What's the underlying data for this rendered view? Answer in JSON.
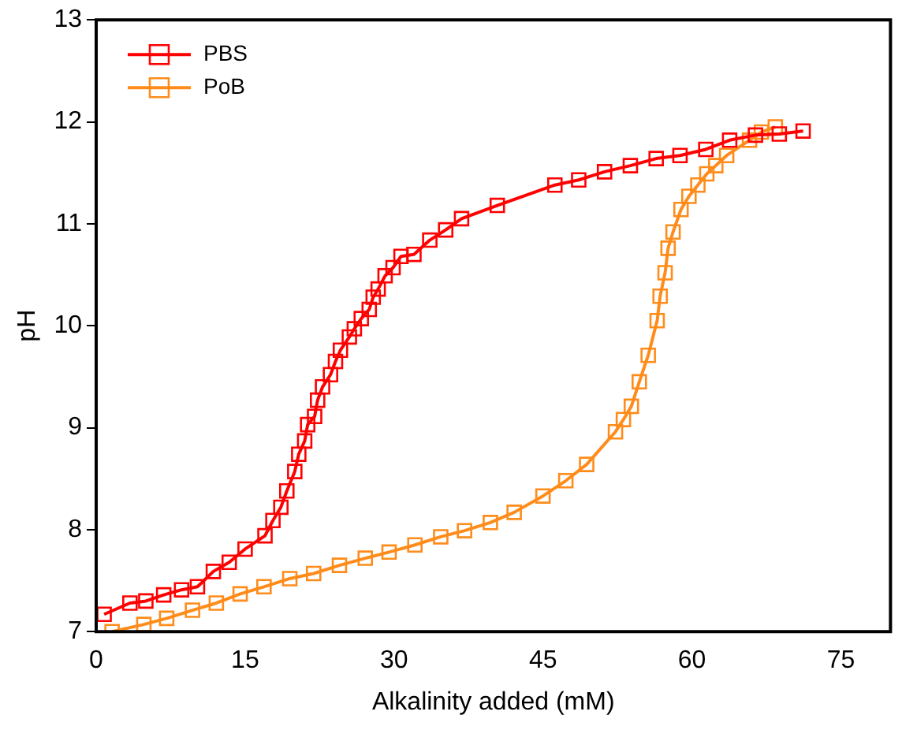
{
  "chart_data": {
    "type": "line",
    "xlabel": "Alkalinity added (mM)",
    "ylabel": "pH",
    "xlim": [
      0,
      80
    ],
    "xticks": [
      0,
      15,
      30,
      45,
      60,
      75
    ],
    "ylim": [
      7,
      13
    ],
    "yticks": [
      7,
      8,
      9,
      10,
      11,
      12,
      13
    ],
    "grid": false,
    "legend": "top left",
    "marker": "square",
    "line_style": "solid",
    "series": [
      {
        "name": "PBS",
        "color": "#ff0000",
        "x": [
          0.8,
          3.4,
          5.0,
          6.8,
          8.6,
          10.2,
          11.8,
          13.4,
          15.0,
          17.0,
          17.8,
          18.6,
          19.2,
          20.0,
          20.4,
          21.0,
          21.3,
          22.0,
          22.3,
          22.8,
          23.6,
          24.1,
          24.6,
          25.5,
          26.0,
          26.7,
          27.5,
          27.9,
          28.4,
          29.1,
          29.9,
          30.7,
          32.0,
          33.6,
          35.2,
          36.8,
          40.4,
          46.2,
          48.6,
          51.2,
          53.8,
          56.4,
          58.8,
          61.4,
          63.8,
          66.4,
          68.8,
          71.2
        ],
        "values": [
          7.17,
          7.28,
          7.3,
          7.36,
          7.41,
          7.44,
          7.59,
          7.68,
          7.81,
          7.94,
          8.09,
          8.22,
          8.38,
          8.57,
          8.74,
          8.87,
          9.03,
          9.11,
          9.27,
          9.4,
          9.52,
          9.65,
          9.76,
          9.89,
          9.97,
          10.07,
          10.16,
          10.28,
          10.36,
          10.49,
          10.57,
          10.68,
          10.7,
          10.84,
          10.94,
          11.05,
          11.18,
          11.38,
          11.43,
          11.51,
          11.57,
          11.64,
          11.67,
          11.73,
          11.82,
          11.87,
          11.88,
          11.91
        ]
      },
      {
        "name": "PoB",
        "color": "#ff8c1a",
        "x": [
          1.6,
          4.8,
          7.1,
          9.7,
          12.1,
          14.5,
          16.9,
          19.5,
          21.9,
          24.5,
          27.1,
          29.5,
          32.1,
          34.7,
          37.1,
          39.7,
          42.1,
          45.0,
          47.3,
          49.4,
          52.3,
          53.1,
          53.9,
          54.7,
          55.6,
          56.5,
          56.8,
          57.3,
          57.6,
          58.1,
          58.9,
          59.7,
          60.6,
          61.5,
          62.4,
          63.5,
          65.8,
          67.0,
          68.4
        ],
        "values": [
          7.0,
          7.07,
          7.13,
          7.21,
          7.28,
          7.37,
          7.44,
          7.52,
          7.57,
          7.65,
          7.72,
          7.78,
          7.85,
          7.93,
          7.99,
          8.07,
          8.17,
          8.33,
          8.48,
          8.64,
          8.96,
          9.08,
          9.21,
          9.45,
          9.71,
          10.05,
          10.29,
          10.52,
          10.76,
          10.92,
          11.14,
          11.27,
          11.38,
          11.49,
          11.57,
          11.67,
          11.82,
          11.9,
          11.95
        ]
      }
    ]
  }
}
